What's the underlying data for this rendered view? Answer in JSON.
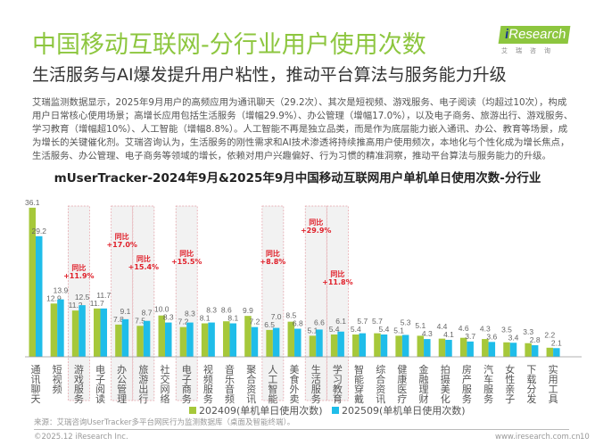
{
  "header": {
    "title": "中国移动互联网-分行业用户使用次数",
    "subtitle": "生活服务与AI爆发提升用户粘性，推动平台算法与服务能力升级",
    "logo_text": "iResearch",
    "logo_cn": "艾瑞咨询"
  },
  "paragraph": [
    "艾瑞监测数据显示，2025年9月用户的高频应用为通讯聊天（29.2次）、其次是短视频、游戏服务、电子阅读（均超过10次），构成",
    "用户日常核心使用场景；高增长应用包括生活服务（增幅29.9%）、办公管理（增幅17.0%），以及电子商务、旅游出行、游戏服务、",
    "学习教育（增幅超10%）、人工智能（增幅8.8%）。人工智能不再是独立品类，而是作为底层能力嵌入通讯、办公、教育等场景，成",
    "为增长的关键催化剂。艾瑞咨询认为，生活服务的刚性需求和AI技术渗透将持续推高用户使用频次，本地化与个性化成为增长焦点，",
    "生活服务、办公管理、电子商务等领域的增长，依赖对用户兴趣偏好、行为习惯的精准洞察，推动平台算法与服务能力的升级。"
  ],
  "chart_data": {
    "type": "bar",
    "title": "mUserTracker-2024年9月&2025年9月中国移动互联网用户单机单日使用次数-分行业",
    "categories": [
      "通讯聊天",
      "短视频",
      "游戏服务",
      "电子阅读",
      "办公管理",
      "旅游出行",
      "社交网络",
      "电子商务",
      "视频服务",
      "音乐音频",
      "聚合资讯",
      "人工智能",
      "美食外卖",
      "生活服务",
      "学习教育",
      "智能穿戴",
      "综合资讯",
      "健康医疗",
      "金融理财",
      "拍摄美化",
      "房产服务",
      "汽车服务",
      "女性亲子",
      "下载分发",
      "实用工具"
    ],
    "series": [
      {
        "name": "202409(单机单日使用次数)",
        "color": "#a6c83a",
        "values": [
          36.1,
          12.9,
          11.2,
          11.7,
          7.8,
          7.5,
          10.0,
          7.2,
          8.1,
          8.6,
          9.9,
          6.5,
          8.5,
          5.1,
          5.4,
          5.4,
          5.7,
          5.1,
          5.1,
          4.4,
          4.6,
          4.3,
          3.5,
          3.3,
          2.2
        ]
      },
      {
        "name": "202509(单机单日使用次数)",
        "color": "#1fbde9",
        "values": [
          29.2,
          13.9,
          12.5,
          11.7,
          9.1,
          8.7,
          8.3,
          8.3,
          8.3,
          8.1,
          7.2,
          7.0,
          6.8,
          6.6,
          6.1,
          5.7,
          5.4,
          5.3,
          4.3,
          4.1,
          3.7,
          3.6,
          3.4,
          2.8,
          2.1
        ]
      }
    ],
    "highlights": [
      {
        "category": "游戏服务",
        "label": "同比",
        "value": "+11.9%"
      },
      {
        "category": "办公管理",
        "label": "同比",
        "value": "+17.0%"
      },
      {
        "category": "旅游出行",
        "label": "同比",
        "value": "+15.4%"
      },
      {
        "category": "电子商务",
        "label": "同比",
        "value": "+15.5%"
      },
      {
        "category": "人工智能",
        "label": "同比",
        "value": "+8.8%"
      },
      {
        "category": "生活服务",
        "label": "同比",
        "value": "+29.9%"
      },
      {
        "category": "学习教育",
        "label": "同比",
        "value": "+11.8%"
      }
    ],
    "highlight_color": "#e0202a",
    "ylim": [
      0,
      40
    ],
    "grid": false,
    "legend_position": "bottom"
  },
  "source": "来源：艾瑞咨询UserTracker多平台网民行为监测数据库（桌面及智能终端）。",
  "footer": {
    "copyright": "©2025.12 iResearch Inc.",
    "url": "www.iresearch.com.cn",
    "page": "10"
  }
}
